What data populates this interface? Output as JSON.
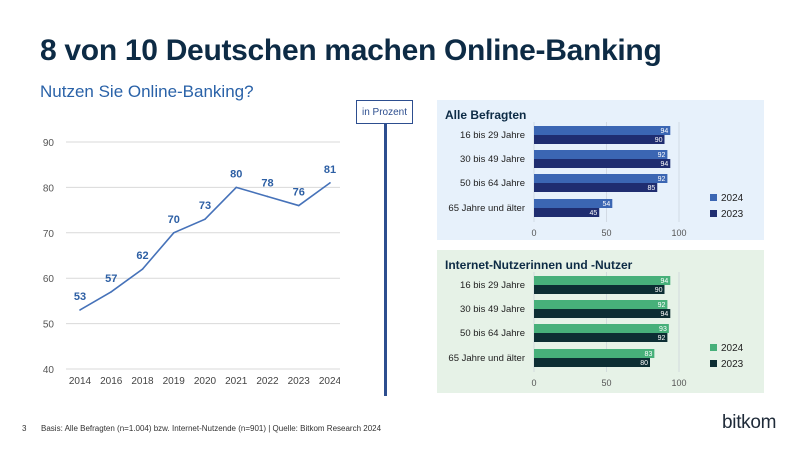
{
  "header": {
    "title": "8 von 10 Deutschen machen Online-Banking",
    "subtitle": "Nutzen Sie Online-Banking?"
  },
  "unit_label": "in Prozent",
  "colors": {
    "line": "#4672b9",
    "line_label": "#2d5fa4",
    "series_2024_blue": "#3b66b3",
    "series_2023_blue": "#1f2d70",
    "series_2024_green": "#47b07a",
    "series_2023_green": "#0d2e33",
    "panel_blue_bg": "#e7f1fb",
    "panel_green_bg": "#e6f2e7"
  },
  "chart_data": [
    {
      "type": "line",
      "x": [
        "2014",
        "2016",
        "2018",
        "2019",
        "2020",
        "2021",
        "2022",
        "2023",
        "2024"
      ],
      "values": [
        53,
        57,
        62,
        70,
        73,
        80,
        78,
        76,
        81
      ],
      "ylim": [
        40,
        90
      ],
      "yticks": [
        40,
        50,
        60,
        70,
        80,
        90
      ],
      "grid": true
    },
    {
      "type": "bar",
      "orientation": "horizontal",
      "title": "Alle Befragten",
      "categories": [
        "16 bis 29 Jahre",
        "30 bis 49 Jahre",
        "50 bis 64 Jahre",
        "65 Jahre und älter"
      ],
      "series": [
        {
          "name": "2024",
          "values": [
            94,
            92,
            92,
            54
          ]
        },
        {
          "name": "2023",
          "values": [
            90,
            94,
            85,
            45
          ]
        }
      ],
      "xlim": [
        0,
        100
      ],
      "xticks": [
        0,
        50,
        100
      ],
      "legend": "right"
    },
    {
      "type": "bar",
      "orientation": "horizontal",
      "title": "Internet-Nutzerinnen und -Nutzer",
      "categories": [
        "16 bis 29 Jahre",
        "30 bis 49 Jahre",
        "50 bis 64 Jahre",
        "65 Jahre und älter"
      ],
      "series": [
        {
          "name": "2024",
          "values": [
            94,
            92,
            93,
            83
          ]
        },
        {
          "name": "2023",
          "values": [
            90,
            94,
            92,
            80
          ]
        }
      ],
      "xlim": [
        0,
        100
      ],
      "xticks": [
        0,
        50,
        100
      ],
      "legend": "right"
    }
  ],
  "footer": {
    "page_number": "3",
    "note": "Basis: Alle Befragten (n=1.004) bzw. Internet-Nutzende (n=901) | Quelle: Bitkom Research 2024"
  },
  "logo_text": "bitkom"
}
